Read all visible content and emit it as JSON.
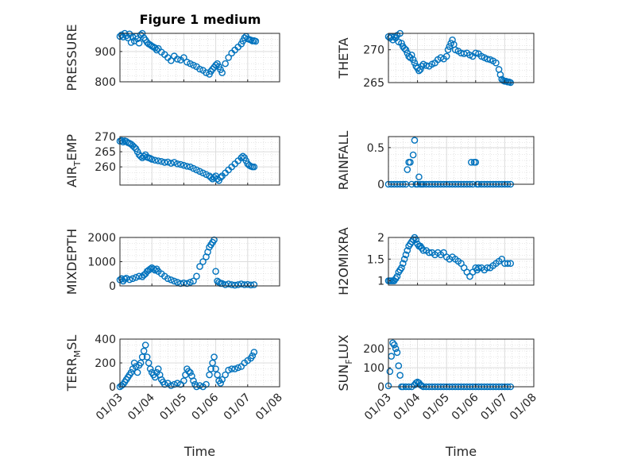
{
  "figure_title": "Figure 1 medium",
  "colors": {
    "marker": "#0072BD",
    "axis": "#262626"
  },
  "chart_data": [
    {
      "type": "scatter",
      "id": "pressure",
      "ylabel": "PRESSURE",
      "ylim": [
        800,
        960
      ],
      "yticks": [
        800,
        900
      ],
      "xticks": [
        "01/03",
        "01/04",
        "01/05",
        "01/06",
        "01/07",
        "01/08"
      ],
      "xlim": [
        0,
        5
      ],
      "xlabel": "",
      "x": [
        0,
        0.05,
        0.1,
        0.15,
        0.2,
        0.25,
        0.3,
        0.35,
        0.4,
        0.45,
        0.5,
        0.55,
        0.6,
        0.65,
        0.7,
        0.75,
        0.8,
        0.85,
        0.9,
        0.95,
        1.0,
        1.05,
        1.1,
        1.15,
        1.2,
        1.3,
        1.4,
        1.5,
        1.6,
        1.7,
        1.8,
        1.9,
        2.0,
        2.1,
        2.2,
        2.3,
        2.4,
        2.5,
        2.6,
        2.7,
        2.8,
        2.85,
        2.9,
        2.95,
        3.0,
        3.05,
        3.1,
        3.15,
        3.2,
        3.3,
        3.4,
        3.5,
        3.6,
        3.7,
        3.8,
        3.85,
        3.9,
        3.95,
        4.0,
        4.05,
        4.1,
        4.15,
        4.2,
        4.25
      ],
      "y": [
        950,
        955,
        948,
        960,
        952,
        945,
        958,
        930,
        948,
        935,
        950,
        942,
        928,
        955,
        960,
        945,
        938,
        930,
        925,
        922,
        918,
        915,
        912,
        905,
        910,
        898,
        890,
        880,
        870,
        885,
        875,
        872,
        880,
        865,
        860,
        855,
        850,
        842,
        838,
        830,
        825,
        835,
        842,
        848,
        855,
        860,
        850,
        840,
        830,
        860,
        880,
        895,
        905,
        915,
        925,
        935,
        945,
        950,
        942,
        940,
        938,
        935,
        936,
        934
      ]
    },
    {
      "type": "scatter",
      "id": "theta",
      "ylabel": "THETA",
      "ylim": [
        265,
        272.5
      ],
      "yticks": [
        265,
        270
      ],
      "xticks": [
        "01/03",
        "01/04",
        "01/05",
        "01/06",
        "01/07",
        "01/08"
      ],
      "xlim": [
        0,
        5
      ],
      "xlabel": "",
      "x": [
        0,
        0.05,
        0.1,
        0.15,
        0.2,
        0.25,
        0.3,
        0.35,
        0.4,
        0.45,
        0.5,
        0.55,
        0.6,
        0.65,
        0.7,
        0.75,
        0.8,
        0.85,
        0.9,
        0.95,
        1.0,
        1.05,
        1.1,
        1.15,
        1.2,
        1.3,
        1.4,
        1.5,
        1.6,
        1.7,
        1.8,
        1.9,
        2.0,
        2.05,
        2.1,
        2.15,
        2.2,
        2.25,
        2.3,
        2.4,
        2.5,
        2.6,
        2.7,
        2.8,
        2.9,
        3.0,
        3.1,
        3.2,
        3.3,
        3.4,
        3.5,
        3.6,
        3.7,
        3.8,
        3.85,
        3.9,
        3.95,
        4.0,
        4.05,
        4.1,
        4.15,
        4.2
      ],
      "y": [
        272,
        271.8,
        272,
        271.5,
        272,
        271.8,
        272.2,
        271.2,
        272.5,
        271,
        270.5,
        270.2,
        270,
        269.5,
        269,
        268.8,
        269.2,
        268.5,
        268,
        267.5,
        267.2,
        266.8,
        267,
        267.5,
        267.8,
        267.6,
        267.5,
        267.8,
        268,
        268.5,
        268.8,
        268.6,
        269,
        270,
        270.5,
        271,
        271.5,
        270.8,
        270,
        269.8,
        269.5,
        269.4,
        269.5,
        269.2,
        269,
        269.5,
        269.4,
        269,
        268.8,
        268.6,
        268.5,
        268.3,
        268,
        267,
        266.2,
        265.5,
        265.3,
        265.2,
        265.2,
        265.1,
        265.1,
        265
      ]
    },
    {
      "type": "scatter",
      "id": "air-temp",
      "ylabel": "AIR_TEMP",
      "ylabel_main": "AIR",
      "ylabel_sub": "T",
      "ylabel_rest": "EMP",
      "ylim": [
        254,
        270
      ],
      "yticks": [
        260,
        265,
        270
      ],
      "xticks": [
        "01/03",
        "01/04",
        "01/05",
        "01/06",
        "01/07",
        "01/08"
      ],
      "xlim": [
        0,
        5
      ],
      "xlabel": "",
      "x": [
        0,
        0.05,
        0.1,
        0.15,
        0.2,
        0.25,
        0.3,
        0.35,
        0.4,
        0.45,
        0.5,
        0.55,
        0.6,
        0.65,
        0.7,
        0.75,
        0.8,
        0.85,
        0.9,
        0.95,
        1.0,
        1.1,
        1.2,
        1.3,
        1.4,
        1.5,
        1.6,
        1.7,
        1.8,
        1.9,
        2.0,
        2.1,
        2.2,
        2.3,
        2.4,
        2.5,
        2.6,
        2.7,
        2.8,
        2.85,
        2.9,
        2.95,
        3.0,
        3.05,
        3.1,
        3.15,
        3.2,
        3.3,
        3.4,
        3.5,
        3.6,
        3.7,
        3.8,
        3.85,
        3.9,
        3.95,
        4.0,
        4.05,
        4.1,
        4.15,
        4.2
      ],
      "y": [
        268.5,
        268.7,
        268.2,
        268.6,
        268.4,
        268,
        267.8,
        267.5,
        267,
        266.5,
        266,
        265,
        264,
        263.5,
        263,
        263.5,
        264,
        263.2,
        263,
        262.8,
        262.5,
        262.2,
        262,
        261.8,
        261.5,
        261.6,
        261.2,
        261.5,
        261,
        260.8,
        260.5,
        260.2,
        260,
        259.5,
        259,
        258.5,
        258,
        257.5,
        257,
        256.5,
        256,
        256.5,
        257,
        256,
        255.5,
        256.5,
        257,
        258,
        259,
        260,
        261,
        262,
        263,
        263.5,
        263,
        262,
        261,
        260.5,
        260.2,
        260,
        260
      ]
    },
    {
      "type": "scatter",
      "id": "rainfall",
      "ylabel": "RAINFALL",
      "ylim": [
        0,
        0.65
      ],
      "yticks": [
        0,
        0.5
      ],
      "xticks": [
        "01/03",
        "01/04",
        "01/05",
        "01/06",
        "01/07",
        "01/08"
      ],
      "xlim": [
        0,
        5
      ],
      "xlabel": "",
      "x": [
        0,
        0.1,
        0.2,
        0.3,
        0.4,
        0.5,
        0.6,
        0.65,
        0.7,
        0.75,
        0.8,
        0.85,
        0.9,
        0.95,
        1.0,
        1.05,
        1.1,
        1.15,
        1.2,
        1.3,
        1.4,
        1.5,
        1.6,
        1.7,
        1.8,
        1.9,
        2.0,
        2.1,
        2.2,
        2.3,
        2.4,
        2.5,
        2.6,
        2.7,
        2.8,
        2.85,
        2.9,
        2.95,
        3.0,
        3.05,
        3.1,
        3.2,
        3.3,
        3.4,
        3.5,
        3.6,
        3.7,
        3.8,
        3.9,
        4.0,
        4.1,
        4.2
      ],
      "y": [
        0,
        0,
        0,
        0,
        0,
        0,
        0,
        0.2,
        0.3,
        0.3,
        0,
        0.4,
        0.6,
        0,
        0,
        0.1,
        0,
        0,
        0,
        0,
        0,
        0,
        0,
        0,
        0,
        0,
        0,
        0,
        0,
        0,
        0,
        0,
        0,
        0,
        0,
        0.3,
        0,
        0.3,
        0.3,
        0,
        0,
        0,
        0,
        0,
        0,
        0,
        0,
        0,
        0,
        0,
        0,
        0
      ]
    },
    {
      "type": "scatter",
      "id": "mixdepth",
      "ylabel": "MIXDEPTH",
      "ylim": [
        0,
        2000
      ],
      "yticks": [
        0,
        1000,
        2000
      ],
      "xticks": [
        "01/03",
        "01/04",
        "01/05",
        "01/06",
        "01/07",
        "01/08"
      ],
      "xlim": [
        0,
        5
      ],
      "xlabel": "",
      "x": [
        0,
        0.05,
        0.1,
        0.15,
        0.2,
        0.3,
        0.4,
        0.5,
        0.6,
        0.7,
        0.75,
        0.8,
        0.85,
        0.9,
        0.95,
        1.0,
        1.05,
        1.1,
        1.15,
        1.2,
        1.3,
        1.4,
        1.5,
        1.6,
        1.7,
        1.8,
        1.9,
        2.0,
        2.1,
        2.2,
        2.3,
        2.4,
        2.5,
        2.6,
        2.7,
        2.75,
        2.8,
        2.85,
        2.9,
        2.95,
        3.0,
        3.05,
        3.1,
        3.15,
        3.2,
        3.3,
        3.4,
        3.5,
        3.6,
        3.7,
        3.8,
        3.9,
        4.0,
        4.1,
        4.2
      ],
      "y": [
        250,
        300,
        200,
        280,
        320,
        260,
        300,
        350,
        400,
        380,
        450,
        500,
        600,
        650,
        700,
        750,
        700,
        650,
        700,
        600,
        500,
        400,
        300,
        250,
        200,
        150,
        100,
        120,
        100,
        150,
        200,
        400,
        800,
        1000,
        1200,
        1400,
        1600,
        1700,
        1800,
        1900,
        600,
        200,
        150,
        100,
        100,
        50,
        80,
        50,
        30,
        50,
        80,
        50,
        60,
        40,
        50
      ]
    },
    {
      "type": "scatter",
      "id": "h2omixra",
      "ylabel": "H2OMIXRA",
      "ylim": [
        0.9,
        2
      ],
      "yticks": [
        1,
        1.5,
        2
      ],
      "xticks": [
        "01/03",
        "01/04",
        "01/05",
        "01/06",
        "01/07",
        "01/08"
      ],
      "xlim": [
        0,
        5
      ],
      "xlabel": "",
      "x": [
        0,
        0.05,
        0.1,
        0.15,
        0.2,
        0.25,
        0.3,
        0.35,
        0.4,
        0.45,
        0.5,
        0.55,
        0.6,
        0.65,
        0.7,
        0.75,
        0.8,
        0.85,
        0.9,
        0.95,
        1.0,
        1.05,
        1.1,
        1.15,
        1.2,
        1.3,
        1.4,
        1.5,
        1.6,
        1.7,
        1.8,
        1.9,
        2.0,
        2.1,
        2.2,
        2.3,
        2.4,
        2.5,
        2.6,
        2.7,
        2.8,
        2.9,
        3.0,
        3.05,
        3.1,
        3.2,
        3.3,
        3.4,
        3.5,
        3.6,
        3.7,
        3.8,
        3.9,
        4.0,
        4.1,
        4.2
      ],
      "y": [
        1,
        1,
        1,
        1,
        1,
        1.05,
        1.1,
        1.2,
        1.25,
        1.3,
        1.4,
        1.5,
        1.6,
        1.7,
        1.8,
        1.85,
        1.9,
        1.95,
        2,
        1.95,
        1.85,
        1.8,
        1.8,
        1.75,
        1.7,
        1.7,
        1.65,
        1.65,
        1.6,
        1.65,
        1.6,
        1.65,
        1.55,
        1.5,
        1.55,
        1.5,
        1.45,
        1.4,
        1.3,
        1.2,
        1.1,
        1.2,
        1.3,
        1.25,
        1.3,
        1.3,
        1.25,
        1.3,
        1.3,
        1.35,
        1.4,
        1.45,
        1.5,
        1.4,
        1.4,
        1.4
      ]
    },
    {
      "type": "scatter",
      "id": "terr-msl",
      "ylabel": "TERR_MSL",
      "ylabel_main": "TERR",
      "ylabel_sub": "M",
      "ylabel_rest": "SL",
      "ylim": [
        0,
        400
      ],
      "yticks": [
        0,
        200,
        400
      ],
      "xticks": [
        "01/03",
        "01/04",
        "01/05",
        "01/06",
        "01/07",
        "01/08"
      ],
      "xlim": [
        0,
        5
      ],
      "xlabel": "Time",
      "x": [
        0,
        0.05,
        0.1,
        0.15,
        0.2,
        0.25,
        0.3,
        0.35,
        0.4,
        0.45,
        0.5,
        0.55,
        0.6,
        0.65,
        0.7,
        0.75,
        0.8,
        0.85,
        0.9,
        0.95,
        1.0,
        1.05,
        1.1,
        1.15,
        1.2,
        1.25,
        1.3,
        1.35,
        1.4,
        1.5,
        1.6,
        1.7,
        1.8,
        1.9,
        2.0,
        2.05,
        2.1,
        2.15,
        2.2,
        2.25,
        2.3,
        2.35,
        2.4,
        2.5,
        2.6,
        2.7,
        2.8,
        2.85,
        2.9,
        2.95,
        3.0,
        3.05,
        3.1,
        3.15,
        3.2,
        3.3,
        3.4,
        3.5,
        3.6,
        3.7,
        3.8,
        3.9,
        4.0,
        4.1,
        4.15,
        4.2
      ],
      "y": [
        0,
        10,
        20,
        40,
        60,
        80,
        100,
        120,
        150,
        200,
        170,
        120,
        180,
        200,
        250,
        300,
        350,
        250,
        200,
        150,
        120,
        100,
        80,
        120,
        150,
        100,
        60,
        40,
        20,
        30,
        10,
        20,
        30,
        20,
        50,
        100,
        150,
        130,
        120,
        90,
        50,
        20,
        0,
        10,
        0,
        20,
        100,
        150,
        200,
        250,
        150,
        100,
        50,
        30,
        60,
        100,
        140,
        150,
        150,
        160,
        170,
        200,
        220,
        240,
        260,
        290
      ]
    },
    {
      "type": "scatter",
      "id": "sun-flux",
      "ylabel": "SUN_FLUX",
      "ylabel_main": "SUN",
      "ylabel_sub": "F",
      "ylabel_rest": "LUX",
      "ylim": [
        0,
        250
      ],
      "yticks": [
        0,
        100,
        200
      ],
      "xticks": [
        "01/03",
        "01/04",
        "01/05",
        "01/06",
        "01/07",
        "01/08"
      ],
      "xlim": [
        0,
        5
      ],
      "xlabel": "Time",
      "x": [
        0,
        0.05,
        0.1,
        0.15,
        0.2,
        0.25,
        0.3,
        0.35,
        0.4,
        0.45,
        0.5,
        0.6,
        0.7,
        0.8,
        0.9,
        0.95,
        1.0,
        1.05,
        1.1,
        1.15,
        1.2,
        1.3,
        1.4,
        1.5,
        1.6,
        1.7,
        1.8,
        1.9,
        2.0,
        2.1,
        2.2,
        2.3,
        2.4,
        2.5,
        2.6,
        2.7,
        2.8,
        2.9,
        3.0,
        3.1,
        3.2,
        3.3,
        3.4,
        3.5,
        3.6,
        3.7,
        3.8,
        3.9,
        4.0,
        4.1,
        4.2
      ],
      "y": [
        5,
        80,
        160,
        230,
        220,
        200,
        180,
        110,
        60,
        0,
        0,
        0,
        0,
        0,
        10,
        20,
        25,
        20,
        10,
        5,
        0,
        0,
        0,
        0,
        0,
        0,
        0,
        0,
        0,
        0,
        0,
        0,
        0,
        0,
        0,
        0,
        0,
        0,
        0,
        0,
        0,
        0,
        0,
        0,
        0,
        0,
        0,
        0,
        0,
        0,
        0
      ]
    }
  ]
}
